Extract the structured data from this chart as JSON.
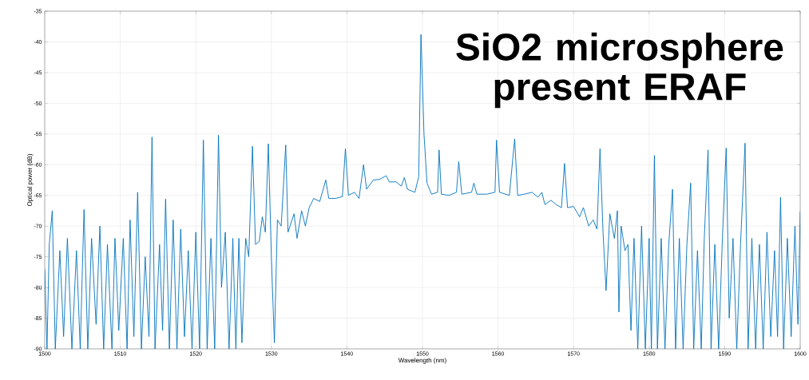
{
  "chart_data": {
    "type": "line",
    "xlabel": "Wavelength (nm)",
    "ylabel": "Optical power (dB)",
    "annotations": [
      "SiO2 microsphere present ERAF"
    ],
    "xlim": [
      1500,
      1600
    ],
    "ylim": [
      -90,
      -35
    ],
    "xticks": [
      1500,
      1510,
      1520,
      1530,
      1540,
      1550,
      1560,
      1570,
      1580,
      1590,
      1600
    ],
    "yticks": [
      -90,
      -85,
      -80,
      -75,
      -70,
      -65,
      -60,
      -55,
      -50,
      -45,
      -40,
      -35
    ],
    "grid": true,
    "series": [
      {
        "color": "#0072bd",
        "x": [
          1500,
          1500.3,
          1500.6,
          1501,
          1501.4,
          1502,
          1502.5,
          1503,
          1503.6,
          1504.2,
          1504.7,
          1505.2,
          1505.7,
          1506.2,
          1506.8,
          1507.3,
          1507.8,
          1508.3,
          1508.9,
          1509.3,
          1509.8,
          1510.4,
          1510.9,
          1511.3,
          1511.8,
          1512.3,
          1512.8,
          1513.3,
          1513.8,
          1514.2,
          1514.6,
          1515.2,
          1515.6,
          1516,
          1516.5,
          1517,
          1517.5,
          1518,
          1518.5,
          1519,
          1519.5,
          1520,
          1520.5,
          1521,
          1521.5,
          1522,
          1522.5,
          1523,
          1523.4,
          1523.9,
          1524.4,
          1524.9,
          1525.3,
          1525.7,
          1526.1,
          1526.6,
          1527,
          1527.5,
          1527.9,
          1528.4,
          1528.8,
          1529.2,
          1529.6,
          1530,
          1530.4,
          1530.8,
          1531.3,
          1531.9,
          1532.2,
          1533,
          1533.4,
          1534,
          1534.5,
          1535,
          1535.6,
          1536.4,
          1537.2,
          1537.6,
          1538.5,
          1539.4,
          1539.8,
          1540.2,
          1541,
          1541.6,
          1542.2,
          1542.6,
          1543.5,
          1544.3,
          1545.2,
          1545.6,
          1546.5,
          1547.2,
          1547.6,
          1548,
          1549,
          1549.5,
          1549.8,
          1550.2,
          1550.6,
          1551.2,
          1552,
          1552.2,
          1552.5,
          1553.5,
          1554.5,
          1554.8,
          1555.2,
          1556.5,
          1556.8,
          1557.2,
          1558.5,
          1559.6,
          1559.8,
          1560.2,
          1561.5,
          1562.2,
          1562.6,
          1563.5,
          1564.5,
          1565.3,
          1565.8,
          1566.2,
          1567,
          1567.7,
          1568.4,
          1568.8,
          1569.2,
          1570,
          1570.8,
          1571.3,
          1572,
          1572.6,
          1573.1,
          1573.5,
          1573.9,
          1574.3,
          1574.8,
          1575.4,
          1575.8,
          1576,
          1576.3,
          1576.8,
          1577.2,
          1577.6,
          1578,
          1578.5,
          1579,
          1579.5,
          1580,
          1580.3,
          1580.7,
          1581.1,
          1581.6,
          1582.1,
          1582.6,
          1583.1,
          1583.5,
          1584,
          1584.5,
          1585,
          1585.5,
          1585.9,
          1586.4,
          1586.9,
          1587.3,
          1587.8,
          1588.2,
          1588.7,
          1589.2,
          1589.7,
          1590.2,
          1590.6,
          1591.1,
          1591.6,
          1592.1,
          1592.7,
          1593.1,
          1593.6,
          1594.1,
          1594.6,
          1595.1,
          1595.6,
          1596.1,
          1596.6,
          1597,
          1597.4,
          1597.8,
          1598.3,
          1598.8,
          1599.3,
          1599.7,
          1600
        ],
        "values": [
          -77,
          -90,
          -73,
          -67.5,
          -90,
          -74,
          -88,
          -72,
          -90,
          -74,
          -90,
          -67.3,
          -90,
          -72,
          -86,
          -70,
          -90,
          -73,
          -90,
          -72,
          -87,
          -72,
          -90,
          -69,
          -88,
          -64.5,
          -90,
          -75,
          -88,
          -55.5,
          -90,
          -73,
          -87,
          -65.6,
          -90,
          -69,
          -90,
          -70.5,
          -88,
          -74,
          -90,
          -71,
          -90,
          -56,
          -90,
          -72,
          -90,
          -55.2,
          -80,
          -71,
          -90,
          -72,
          -90,
          -72,
          -89,
          -72,
          -75,
          -57,
          -73,
          -72.5,
          -68.5,
          -71,
          -56.6,
          -75,
          -89,
          -69,
          -70,
          -56.8,
          -71,
          -68,
          -72,
          -67.5,
          -70,
          -67,
          -65.5,
          -66,
          -62.5,
          -65.5,
          -65.5,
          -65.2,
          -57.4,
          -65,
          -64.5,
          -65.5,
          -60,
          -64,
          -62.5,
          -62.4,
          -61.8,
          -62.8,
          -62.8,
          -63.5,
          -62.1,
          -64,
          -64.5,
          -62,
          -38.8,
          -55,
          -63,
          -64.8,
          -64.5,
          -57.6,
          -64.8,
          -65,
          -64.5,
          -59.5,
          -64.8,
          -64.5,
          -63,
          -64.8,
          -64.8,
          -64.5,
          -56,
          -64.5,
          -65,
          -55.8,
          -65,
          -64.8,
          -64.5,
          -65.3,
          -64.5,
          -66.5,
          -65.8,
          -66.5,
          -67,
          -59.8,
          -67,
          -66.8,
          -68.5,
          -67,
          -70,
          -69,
          -70.5,
          -57.4,
          -71,
          -80.5,
          -68,
          -72,
          -67.5,
          -84,
          -70,
          -74,
          -73,
          -87,
          -72,
          -90,
          -70,
          -90,
          -72,
          -90,
          -58.5,
          -90,
          -72,
          -90,
          -73,
          -64,
          -90,
          -72,
          -90,
          -73,
          -63,
          -90,
          -74,
          -90,
          -72,
          -57.6,
          -90,
          -73,
          -90,
          -72,
          -57.3,
          -85,
          -72,
          -90,
          -73,
          -56.5,
          -90,
          -72,
          -90,
          -73,
          -90,
          -71,
          -88,
          -74,
          -88,
          -65.3,
          -90,
          -72,
          -88,
          -70,
          -86,
          -67.6
        ]
      }
    ]
  }
}
